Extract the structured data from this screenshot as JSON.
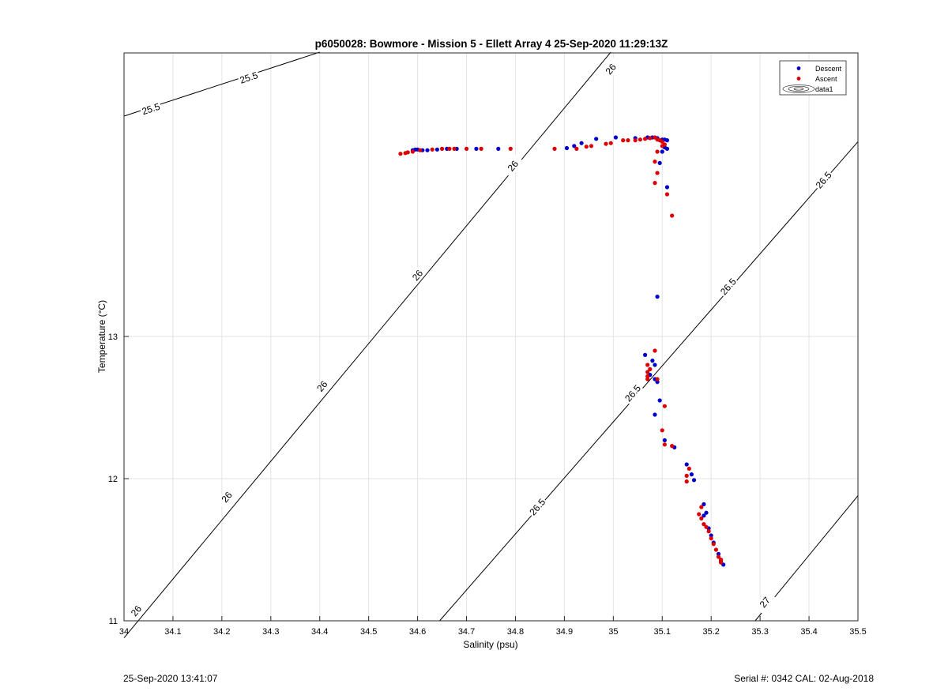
{
  "chart_data": {
    "type": "scatter",
    "title": "p6050028: Bowmore - Mission 5 - Ellett Array 4 25-Sep-2020 11:29:13Z",
    "xlabel": "Salinity (psu)",
    "ylabel": "Temperature (°C)",
    "xlim": [
      34,
      35.5
    ],
    "ylim": [
      11,
      15
    ],
    "x_ticks": [
      34,
      34.1,
      34.2,
      34.3,
      34.4,
      34.5,
      34.6,
      34.7,
      34.8,
      34.9,
      35,
      35.1,
      35.2,
      35.3,
      35.4,
      35.5
    ],
    "y_ticks": [
      11,
      12,
      13
    ],
    "grid": true,
    "legend": {
      "position": "top-right",
      "entries": [
        "Descent",
        "Ascent",
        "data1"
      ]
    },
    "contours": [
      {
        "label": "25.5",
        "points": [
          [
            34,
            14.55
          ],
          [
            34.4,
            15
          ]
        ],
        "label_positions": [
          [
            34.055,
            14.6
          ],
          [
            34.255,
            14.82
          ]
        ]
      },
      {
        "label": "26",
        "points": [
          [
            34,
            10.88
          ],
          [
            34.995,
            15
          ]
        ],
        "label_positions": [
          [
            34.025,
            11.07
          ],
          [
            34.21,
            11.87
          ],
          [
            34.405,
            12.65
          ],
          [
            34.6,
            13.43
          ],
          [
            34.795,
            14.2
          ],
          [
            34.995,
            14.88
          ]
        ]
      },
      {
        "label": "26.5",
        "points": [
          [
            34.645,
            11
          ],
          [
            35.5,
            14.37
          ]
        ],
        "label_positions": [
          [
            34.845,
            11.8
          ],
          [
            35.04,
            12.6
          ],
          [
            35.235,
            13.35
          ],
          [
            35.43,
            14.1
          ]
        ]
      },
      {
        "label": "27",
        "points": [
          [
            35.29,
            11
          ],
          [
            35.5,
            11.88
          ]
        ],
        "label_positions": [
          [
            35.31,
            11.13
          ]
        ]
      }
    ],
    "series": [
      {
        "name": "Descent",
        "color": "#0000cc",
        "points": [
          [
            34.59,
            14.31
          ],
          [
            34.595,
            14.315
          ],
          [
            34.6,
            14.315
          ],
          [
            34.61,
            14.31
          ],
          [
            34.62,
            14.31
          ],
          [
            34.64,
            14.315
          ],
          [
            34.66,
            14.32
          ],
          [
            34.68,
            14.32
          ],
          [
            34.72,
            14.32
          ],
          [
            34.765,
            14.32
          ],
          [
            34.905,
            14.325
          ],
          [
            34.92,
            14.34
          ],
          [
            34.935,
            14.36
          ],
          [
            34.965,
            14.39
          ],
          [
            35.005,
            14.4
          ],
          [
            35.045,
            14.395
          ],
          [
            35.07,
            14.4
          ],
          [
            35.08,
            14.4
          ],
          [
            35.09,
            14.395
          ],
          [
            35.1,
            14.385
          ],
          [
            35.105,
            14.385
          ],
          [
            35.11,
            14.38
          ],
          [
            35.105,
            14.33
          ],
          [
            35.11,
            14.32
          ],
          [
            35.1,
            14.3
          ],
          [
            35.095,
            14.22
          ],
          [
            35.11,
            14.05
          ],
          [
            35.09,
            13.28
          ],
          [
            35.065,
            12.87
          ],
          [
            35.08,
            12.83
          ],
          [
            35.085,
            12.8
          ],
          [
            35.075,
            12.73
          ],
          [
            35.085,
            12.7
          ],
          [
            35.09,
            12.68
          ],
          [
            35.095,
            12.55
          ],
          [
            35.085,
            12.45
          ],
          [
            35.105,
            12.27
          ],
          [
            35.125,
            12.22
          ],
          [
            35.15,
            12.1
          ],
          [
            35.16,
            12.03
          ],
          [
            35.165,
            11.99
          ],
          [
            35.185,
            11.82
          ],
          [
            35.19,
            11.76
          ],
          [
            35.185,
            11.74
          ],
          [
            35.195,
            11.65
          ],
          [
            35.2,
            11.6
          ],
          [
            35.205,
            11.55
          ],
          [
            35.215,
            11.47
          ],
          [
            35.22,
            11.42
          ],
          [
            35.225,
            11.395
          ]
        ]
      },
      {
        "name": "Ascent",
        "color": "#dd0000",
        "points": [
          [
            34.565,
            14.285
          ],
          [
            34.575,
            14.29
          ],
          [
            34.58,
            14.295
          ],
          [
            34.59,
            14.3
          ],
          [
            34.605,
            14.31
          ],
          [
            34.63,
            14.315
          ],
          [
            34.65,
            14.32
          ],
          [
            34.665,
            14.32
          ],
          [
            34.675,
            14.32
          ],
          [
            34.7,
            14.32
          ],
          [
            34.73,
            14.32
          ],
          [
            34.79,
            14.32
          ],
          [
            34.88,
            14.32
          ],
          [
            34.925,
            14.32
          ],
          [
            34.945,
            14.335
          ],
          [
            34.955,
            14.34
          ],
          [
            34.985,
            14.355
          ],
          [
            34.995,
            14.36
          ],
          [
            35.02,
            14.38
          ],
          [
            35.03,
            14.38
          ],
          [
            35.045,
            14.38
          ],
          [
            35.055,
            14.385
          ],
          [
            35.065,
            14.39
          ],
          [
            35.075,
            14.395
          ],
          [
            35.085,
            14.4
          ],
          [
            35.09,
            14.385
          ],
          [
            35.095,
            14.38
          ],
          [
            35.1,
            14.37
          ],
          [
            35.105,
            14.35
          ],
          [
            35.09,
            14.3
          ],
          [
            35.1,
            14.34
          ],
          [
            35.085,
            14.23
          ],
          [
            35.09,
            14.15
          ],
          [
            35.085,
            14.08
          ],
          [
            35.11,
            14.0
          ],
          [
            35.12,
            13.85
          ],
          [
            35.085,
            12.9
          ],
          [
            35.07,
            12.8
          ],
          [
            35.075,
            12.77
          ],
          [
            35.07,
            12.75
          ],
          [
            35.07,
            12.72
          ],
          [
            35.07,
            12.7
          ],
          [
            35.09,
            12.7
          ],
          [
            35.105,
            12.51
          ],
          [
            35.1,
            12.34
          ],
          [
            35.105,
            12.24
          ],
          [
            35.12,
            12.23
          ],
          [
            35.155,
            12.07
          ],
          [
            35.15,
            12.02
          ],
          [
            35.15,
            11.98
          ],
          [
            35.18,
            11.8
          ],
          [
            35.175,
            11.75
          ],
          [
            35.18,
            11.72
          ],
          [
            35.185,
            11.68
          ],
          [
            35.19,
            11.66
          ],
          [
            35.195,
            11.63
          ],
          [
            35.2,
            11.58
          ],
          [
            35.205,
            11.54
          ],
          [
            35.21,
            11.5
          ],
          [
            35.215,
            11.45
          ],
          [
            35.22,
            11.41
          ],
          [
            35.22,
            11.43
          ]
        ]
      }
    ]
  },
  "footer": {
    "timestamp": "25-Sep-2020 13:41:07",
    "serial": "Serial #: 0342  CAL: 02-Aug-2018"
  }
}
